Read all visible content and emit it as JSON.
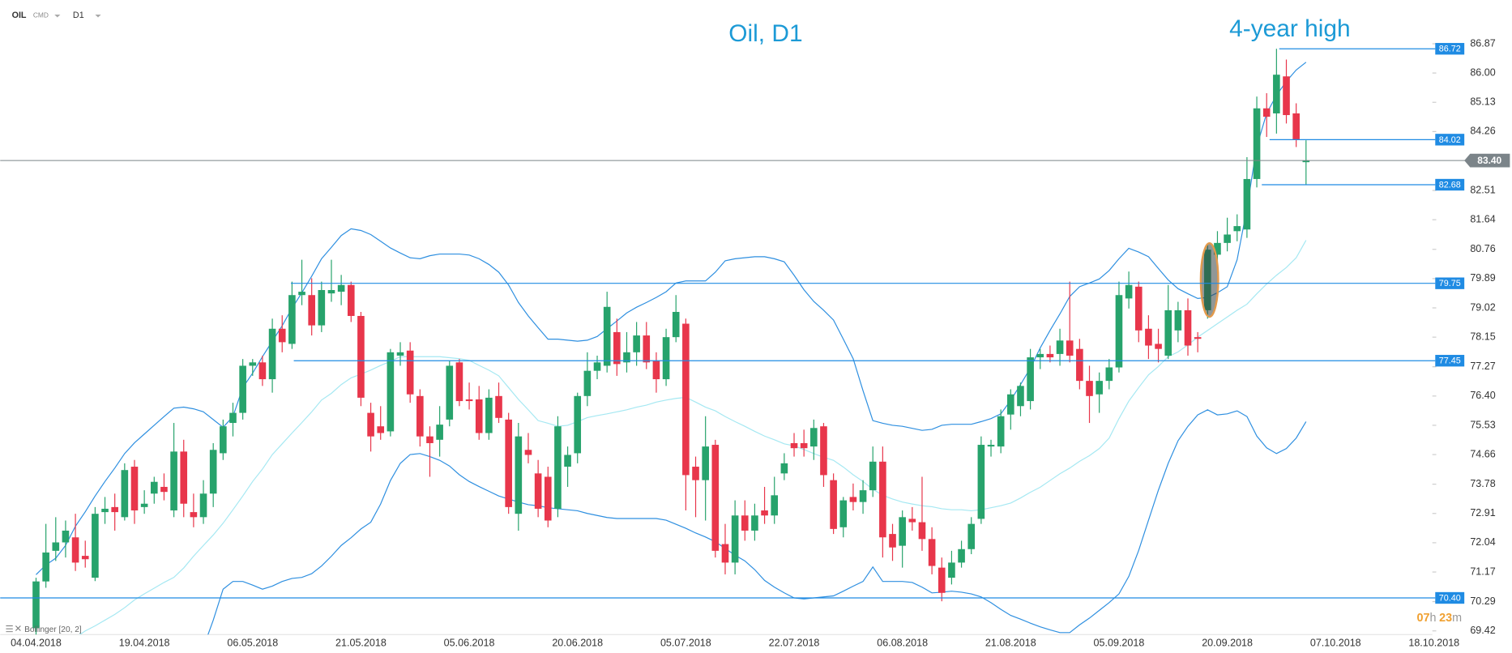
{
  "header": {
    "symbol": "OIL",
    "market": "CMD",
    "timeframe": "D1"
  },
  "timer": {
    "hours": "07",
    "hours_unit": "h",
    "minutes": "23",
    "minutes_unit": "m"
  },
  "chart_data": {
    "type": "candlestick",
    "title": "Oil, D1",
    "annotation": "4-year high",
    "categories": [
      "04.04.2018",
      null,
      null,
      null,
      null,
      null,
      null,
      null,
      null,
      null,
      null,
      "19.04.2018",
      null,
      null,
      null,
      null,
      null,
      null,
      null,
      null,
      null,
      null,
      "06.05.2018",
      null,
      null,
      null,
      null,
      null,
      null,
      null,
      null,
      null,
      null,
      "21.05.2018",
      null,
      null,
      null,
      null,
      null,
      null,
      null,
      null,
      null,
      null,
      "05.06.2018",
      null,
      null,
      null,
      null,
      null,
      null,
      null,
      null,
      null,
      null,
      "20.06.2018",
      null,
      null,
      null,
      null,
      null,
      null,
      null,
      null,
      null,
      null,
      "05.07.2018",
      null,
      null,
      null,
      null,
      null,
      null,
      null,
      null,
      null,
      null,
      "22.07.2018",
      null,
      null,
      null,
      null,
      null,
      null,
      null,
      null,
      null,
      null,
      "06.08.2018",
      null,
      null,
      null,
      null,
      null,
      null,
      null,
      null,
      null,
      null,
      "21.08.2018",
      null,
      null,
      null,
      null,
      null,
      null,
      null,
      null,
      null,
      null,
      "05.09.2018",
      null,
      null,
      null,
      null,
      null,
      null,
      null,
      null,
      null,
      null,
      "20.09.2018",
      null,
      null,
      null,
      null,
      null,
      null,
      null,
      null,
      null,
      null,
      "07.10.2018",
      null,
      null,
      null,
      null,
      null,
      null,
      null,
      null,
      null,
      "18.10.2018"
    ],
    "ohlc": [
      [
        69.5,
        71.0,
        69.3,
        70.89
      ],
      [
        70.89,
        72.6,
        70.7,
        71.75
      ],
      [
        71.8,
        72.8,
        71.5,
        72.05
      ],
      [
        72.05,
        72.7,
        71.6,
        72.4
      ],
      [
        72.2,
        72.9,
        71.2,
        71.45
      ],
      [
        71.65,
        72.1,
        71.3,
        71.55
      ],
      [
        71.0,
        73.1,
        70.9,
        72.9
      ],
      [
        72.95,
        73.4,
        72.6,
        73.05
      ],
      [
        73.1,
        73.5,
        72.4,
        72.95
      ],
      [
        72.8,
        74.4,
        72.7,
        74.2
      ],
      [
        74.3,
        74.5,
        72.6,
        73.0
      ],
      [
        73.1,
        73.6,
        72.9,
        73.2
      ],
      [
        73.5,
        74.0,
        73.2,
        73.85
      ],
      [
        73.7,
        74.1,
        73.3,
        73.55
      ],
      [
        73.0,
        75.6,
        72.8,
        74.75
      ],
      [
        74.75,
        75.1,
        72.8,
        73.2
      ],
      [
        72.95,
        73.5,
        72.5,
        72.8
      ],
      [
        72.8,
        73.9,
        72.6,
        73.5
      ],
      [
        73.5,
        75.0,
        73.1,
        74.8
      ],
      [
        74.7,
        75.7,
        74.5,
        75.5
      ],
      [
        75.6,
        76.2,
        75.2,
        75.9
      ],
      [
        75.9,
        77.5,
        75.7,
        77.3
      ],
      [
        77.3,
        77.5,
        77.0,
        77.4
      ],
      [
        77.4,
        77.6,
        76.7,
        76.9
      ],
      [
        76.9,
        78.7,
        76.5,
        78.4
      ],
      [
        78.4,
        78.8,
        77.7,
        78.0
      ],
      [
        77.95,
        79.8,
        77.8,
        79.4
      ],
      [
        79.4,
        80.45,
        79.1,
        79.5
      ],
      [
        79.4,
        79.9,
        78.2,
        78.5
      ],
      [
        78.5,
        79.8,
        78.3,
        79.55
      ],
      [
        79.45,
        80.45,
        79.2,
        79.55
      ],
      [
        79.5,
        80.0,
        79.1,
        79.7
      ],
      [
        79.7,
        79.8,
        78.6,
        78.78
      ],
      [
        78.78,
        78.9,
        76.1,
        76.35
      ],
      [
        75.9,
        76.2,
        74.75,
        75.2
      ],
      [
        75.5,
        76.1,
        75.1,
        75.3
      ],
      [
        75.35,
        77.8,
        75.2,
        77.7
      ],
      [
        77.6,
        78.0,
        77.3,
        77.7
      ],
      [
        77.75,
        78.0,
        76.2,
        76.45
      ],
      [
        76.4,
        76.6,
        74.9,
        75.2
      ],
      [
        75.2,
        75.5,
        74.0,
        75.0
      ],
      [
        75.1,
        76.1,
        74.6,
        75.55
      ],
      [
        75.7,
        77.45,
        75.5,
        77.3
      ],
      [
        77.4,
        77.5,
        76.1,
        76.25
      ],
      [
        76.3,
        76.8,
        76.0,
        76.25
      ],
      [
        76.3,
        76.7,
        75.1,
        75.3
      ],
      [
        75.3,
        76.6,
        75.1,
        76.35
      ],
      [
        76.4,
        76.8,
        75.6,
        75.75
      ],
      [
        75.7,
        75.9,
        72.9,
        73.1
      ],
      [
        72.9,
        75.6,
        72.4,
        75.2
      ],
      [
        74.8,
        75.3,
        74.4,
        74.65
      ],
      [
        74.1,
        74.5,
        72.8,
        73.05
      ],
      [
        74.0,
        74.3,
        72.5,
        72.7
      ],
      [
        73.05,
        75.8,
        72.8,
        75.5
      ],
      [
        74.3,
        74.9,
        73.7,
        74.65
      ],
      [
        74.7,
        76.5,
        74.4,
        76.4
      ],
      [
        76.4,
        77.7,
        76.1,
        77.15
      ],
      [
        77.15,
        77.6,
        76.9,
        77.4
      ],
      [
        77.3,
        79.5,
        77.1,
        79.05
      ],
      [
        78.3,
        78.7,
        77.0,
        77.35
      ],
      [
        77.4,
        78.3,
        77.1,
        77.7
      ],
      [
        77.7,
        78.6,
        77.3,
        78.2
      ],
      [
        78.2,
        78.6,
        77.2,
        77.4
      ],
      [
        77.45,
        77.7,
        76.5,
        76.9
      ],
      [
        76.9,
        78.4,
        76.7,
        78.15
      ],
      [
        78.15,
        79.4,
        78.0,
        78.9
      ],
      [
        78.55,
        78.7,
        73.0,
        74.05
      ],
      [
        74.3,
        74.6,
        72.8,
        73.9
      ],
      [
        73.9,
        75.8,
        72.7,
        74.9
      ],
      [
        74.95,
        75.1,
        71.6,
        71.8
      ],
      [
        72.0,
        72.6,
        71.1,
        71.45
      ],
      [
        71.45,
        73.3,
        71.1,
        72.85
      ],
      [
        72.85,
        73.3,
        72.1,
        72.4
      ],
      [
        72.4,
        73.2,
        72.1,
        72.85
      ],
      [
        73.0,
        73.7,
        72.6,
        72.85
      ],
      [
        72.85,
        74.0,
        72.6,
        73.45
      ],
      [
        74.1,
        74.7,
        73.9,
        74.4
      ],
      [
        75.0,
        75.3,
        74.6,
        74.85
      ],
      [
        75.0,
        75.4,
        74.6,
        74.85
      ],
      [
        74.9,
        75.7,
        74.5,
        75.45
      ],
      [
        75.5,
        75.6,
        73.7,
        74.05
      ],
      [
        73.9,
        74.1,
        72.3,
        72.45
      ],
      [
        72.5,
        73.4,
        72.2,
        73.3
      ],
      [
        73.4,
        73.8,
        73.0,
        73.25
      ],
      [
        73.25,
        73.9,
        72.9,
        73.6
      ],
      [
        73.6,
        74.9,
        73.4,
        74.45
      ],
      [
        74.45,
        74.9,
        71.6,
        72.2
      ],
      [
        72.3,
        72.6,
        71.5,
        71.9
      ],
      [
        71.95,
        73.0,
        71.3,
        72.8
      ],
      [
        72.75,
        73.1,
        72.4,
        72.65
      ],
      [
        72.65,
        74.0,
        71.8,
        72.15
      ],
      [
        72.15,
        72.5,
        71.1,
        71.35
      ],
      [
        71.3,
        71.6,
        70.3,
        70.55
      ],
      [
        71.0,
        71.8,
        70.8,
        71.45
      ],
      [
        71.45,
        72.1,
        71.3,
        71.85
      ],
      [
        71.85,
        72.8,
        71.7,
        72.6
      ],
      [
        72.75,
        75.2,
        72.6,
        74.95
      ],
      [
        74.9,
        75.1,
        74.6,
        74.95
      ],
      [
        74.9,
        76.0,
        74.7,
        75.8
      ],
      [
        75.85,
        76.6,
        75.4,
        76.45
      ],
      [
        76.1,
        76.8,
        75.8,
        76.7
      ],
      [
        76.25,
        77.8,
        76.0,
        77.55
      ],
      [
        77.55,
        77.8,
        77.2,
        77.65
      ],
      [
        77.65,
        77.9,
        77.4,
        77.55
      ],
      [
        77.65,
        78.4,
        77.3,
        78.05
      ],
      [
        78.05,
        79.8,
        77.4,
        77.6
      ],
      [
        77.8,
        78.1,
        76.6,
        76.85
      ],
      [
        76.85,
        77.3,
        75.6,
        76.4
      ],
      [
        76.45,
        77.1,
        75.9,
        76.85
      ],
      [
        76.85,
        77.5,
        76.6,
        77.25
      ],
      [
        77.25,
        79.8,
        77.1,
        79.4
      ],
      [
        79.3,
        80.1,
        79.0,
        79.7
      ],
      [
        79.65,
        79.8,
        78.0,
        78.35
      ],
      [
        78.4,
        78.8,
        77.5,
        77.9
      ],
      [
        77.95,
        78.4,
        77.4,
        77.8
      ],
      [
        77.6,
        79.7,
        77.5,
        78.95
      ],
      [
        78.35,
        79.2,
        78.0,
        78.95
      ],
      [
        78.95,
        79.3,
        77.6,
        77.9
      ],
      [
        78.15,
        78.3,
        77.7,
        78.1
      ],
      [
        78.95,
        80.9,
        78.7,
        80.75
      ],
      [
        80.6,
        81.3,
        80.4,
        80.95
      ],
      [
        80.95,
        81.7,
        80.7,
        81.2
      ],
      [
        81.3,
        81.8,
        81.0,
        81.45
      ],
      [
        81.35,
        83.5,
        81.1,
        82.85
      ],
      [
        82.85,
        85.3,
        82.6,
        84.95
      ],
      [
        84.95,
        85.4,
        84.1,
        84.7
      ],
      [
        84.8,
        86.72,
        84.2,
        85.95
      ],
      [
        85.9,
        86.4,
        84.5,
        84.75
      ],
      [
        84.8,
        85.1,
        83.8,
        84.02
      ],
      [
        83.35,
        84.0,
        82.68,
        83.4
      ],
      null,
      null,
      null,
      null,
      null,
      null,
      null,
      null,
      null,
      null,
      null,
      null,
      null
    ],
    "up_color": "#27a36c",
    "down_color": "#e8364b",
    "bollinger": {
      "label": "Bollinger [20, 2]",
      "color": "#2e8fe0",
      "middle_color": "#a5e8f2",
      "upper": [
        71.09,
        71.38,
        71.58,
        71.96,
        72.53,
        72.96,
        73.43,
        73.86,
        74.26,
        74.69,
        75.01,
        75.27,
        75.53,
        75.79,
        76.04,
        76.07,
        76.02,
        75.93,
        75.7,
        75.47,
        75.79,
        76.65,
        77.08,
        77.57,
        78.03,
        78.49,
        79.01,
        79.47,
        79.96,
        80.48,
        80.82,
        81.17,
        81.37,
        81.32,
        81.2,
        81.0,
        80.8,
        80.65,
        80.51,
        80.48,
        80.57,
        80.62,
        80.62,
        80.62,
        80.59,
        80.48,
        80.31,
        80.08,
        79.7,
        79.18,
        78.78,
        78.43,
        78.09,
        78.09,
        78.06,
        78.03,
        78.06,
        78.17,
        78.4,
        78.63,
        78.87,
        79.04,
        79.18,
        79.33,
        79.5,
        79.76,
        79.82,
        79.82,
        79.82,
        80.08,
        80.42,
        80.48,
        80.51,
        80.54,
        80.54,
        80.48,
        80.39,
        79.99,
        79.56,
        79.21,
        78.95,
        78.66,
        78.09,
        77.51,
        76.56,
        75.67,
        75.59,
        75.53,
        75.5,
        75.44,
        75.38,
        75.41,
        75.53,
        75.56,
        75.56,
        75.56,
        75.64,
        75.73,
        75.87,
        76.27,
        76.74,
        77.23,
        77.83,
        78.35,
        78.84,
        79.36,
        79.65,
        79.76,
        79.88,
        80.13,
        80.48,
        80.79,
        80.68,
        80.54,
        80.19,
        79.85,
        79.59,
        79.44,
        79.3,
        79.33,
        79.47,
        79.65,
        80.45,
        81.98,
        83.82,
        84.8,
        85.34,
        85.75,
        86.09,
        86.32,
        null,
        null,
        null,
        null,
        null,
        null,
        null,
        null,
        null,
        null,
        null,
        null,
        null
      ],
      "middle": [
        68.59,
        68.73,
        68.88,
        69.02,
        69.22,
        69.42,
        69.57,
        69.74,
        69.91,
        70.11,
        70.34,
        70.52,
        70.69,
        70.86,
        71.01,
        71.29,
        71.64,
        71.96,
        72.27,
        72.62,
        73.02,
        73.43,
        73.86,
        74.23,
        74.66,
        74.98,
        75.3,
        75.61,
        75.93,
        76.28,
        76.48,
        76.74,
        76.94,
        77.05,
        77.17,
        77.31,
        77.43,
        77.57,
        77.57,
        77.57,
        77.57,
        77.57,
        77.54,
        77.51,
        77.46,
        77.31,
        77.17,
        77.0,
        76.65,
        76.3,
        75.99,
        75.67,
        75.59,
        75.5,
        75.53,
        75.64,
        75.76,
        75.82,
        75.87,
        75.93,
        75.99,
        76.07,
        76.13,
        76.22,
        76.28,
        76.33,
        76.36,
        76.22,
        76.07,
        75.96,
        75.79,
        75.64,
        75.5,
        75.35,
        75.21,
        75.1,
        74.98,
        74.92,
        74.81,
        74.69,
        74.58,
        74.49,
        74.29,
        74.06,
        73.86,
        73.63,
        73.45,
        73.34,
        73.25,
        73.19,
        73.14,
        73.11,
        73.05,
        73.02,
        73.02,
        72.99,
        73.02,
        73.08,
        73.14,
        73.22,
        73.37,
        73.54,
        73.69,
        73.89,
        74.09,
        74.26,
        74.46,
        74.63,
        74.84,
        75.15,
        75.73,
        76.25,
        76.65,
        77.03,
        77.28,
        77.57,
        77.71,
        77.92,
        78.15,
        78.35,
        78.55,
        78.75,
        78.95,
        79.13,
        79.44,
        79.73,
        79.99,
        80.22,
        80.51,
        81.03,
        null,
        null,
        null,
        null,
        null,
        null,
        null,
        null,
        null,
        null,
        null,
        null,
        null
      ],
      "lower": [
        null,
        null,
        null,
        null,
        null,
        null,
        null,
        null,
        null,
        null,
        null,
        null,
        null,
        null,
        null,
        null,
        null,
        68.93,
        69.74,
        70.66,
        70.89,
        70.89,
        70.78,
        70.66,
        70.75,
        70.89,
        70.98,
        71.01,
        71.12,
        71.35,
        71.64,
        71.96,
        72.19,
        72.45,
        72.65,
        73.19,
        73.89,
        74.4,
        74.66,
        74.69,
        74.6,
        74.49,
        74.32,
        74.06,
        73.86,
        73.71,
        73.57,
        73.43,
        73.34,
        73.25,
        73.17,
        73.14,
        73.08,
        73.05,
        73.02,
        72.99,
        72.91,
        72.85,
        72.79,
        72.76,
        72.76,
        72.76,
        72.76,
        72.76,
        72.71,
        72.59,
        72.47,
        72.33,
        72.21,
        72.07,
        71.87,
        71.67,
        71.5,
        71.24,
        70.92,
        70.72,
        70.55,
        70.4,
        70.37,
        70.4,
        70.43,
        70.46,
        70.6,
        70.75,
        70.89,
        71.32,
        70.89,
        70.89,
        70.89,
        70.86,
        70.72,
        70.55,
        70.57,
        70.6,
        70.57,
        70.52,
        70.43,
        70.26,
        70.06,
        69.88,
        69.77,
        69.65,
        69.54,
        69.45,
        69.37,
        69.37,
        69.6,
        69.8,
        70.03,
        70.26,
        70.52,
        71.04,
        71.81,
        72.71,
        73.6,
        74.4,
        75.07,
        75.5,
        75.84,
        75.99,
        75.84,
        75.87,
        75.96,
        75.79,
        75.21,
        74.86,
        74.69,
        74.84,
        75.15,
        75.64,
        null,
        null,
        null,
        null,
        null,
        null,
        null,
        null,
        null,
        null,
        null,
        null,
        null
      ]
    },
    "levels": [
      86.72,
      84.02,
      82.68,
      79.75,
      77.45,
      {
        "value": 70.4,
        "label": "70.40"
      }
    ],
    "level_color": "#1f8be3",
    "last_price": {
      "value": 83.4,
      "label": "83.40"
    },
    "last_price_color": "#7b8489",
    "ylim": [
      69.31,
      88.17
    ],
    "yticks": [
      86.87,
      {
        "value": 86,
        "label": "86.00"
      },
      85.13,
      84.26,
      82.51,
      81.64,
      80.76,
      79.89,
      79.02,
      78.15,
      77.27,
      {
        "value": 76.4,
        "label": "76.40"
      },
      75.53,
      74.66,
      73.78,
      72.91,
      72.04,
      71.17,
      70.29,
      69.42
    ]
  }
}
